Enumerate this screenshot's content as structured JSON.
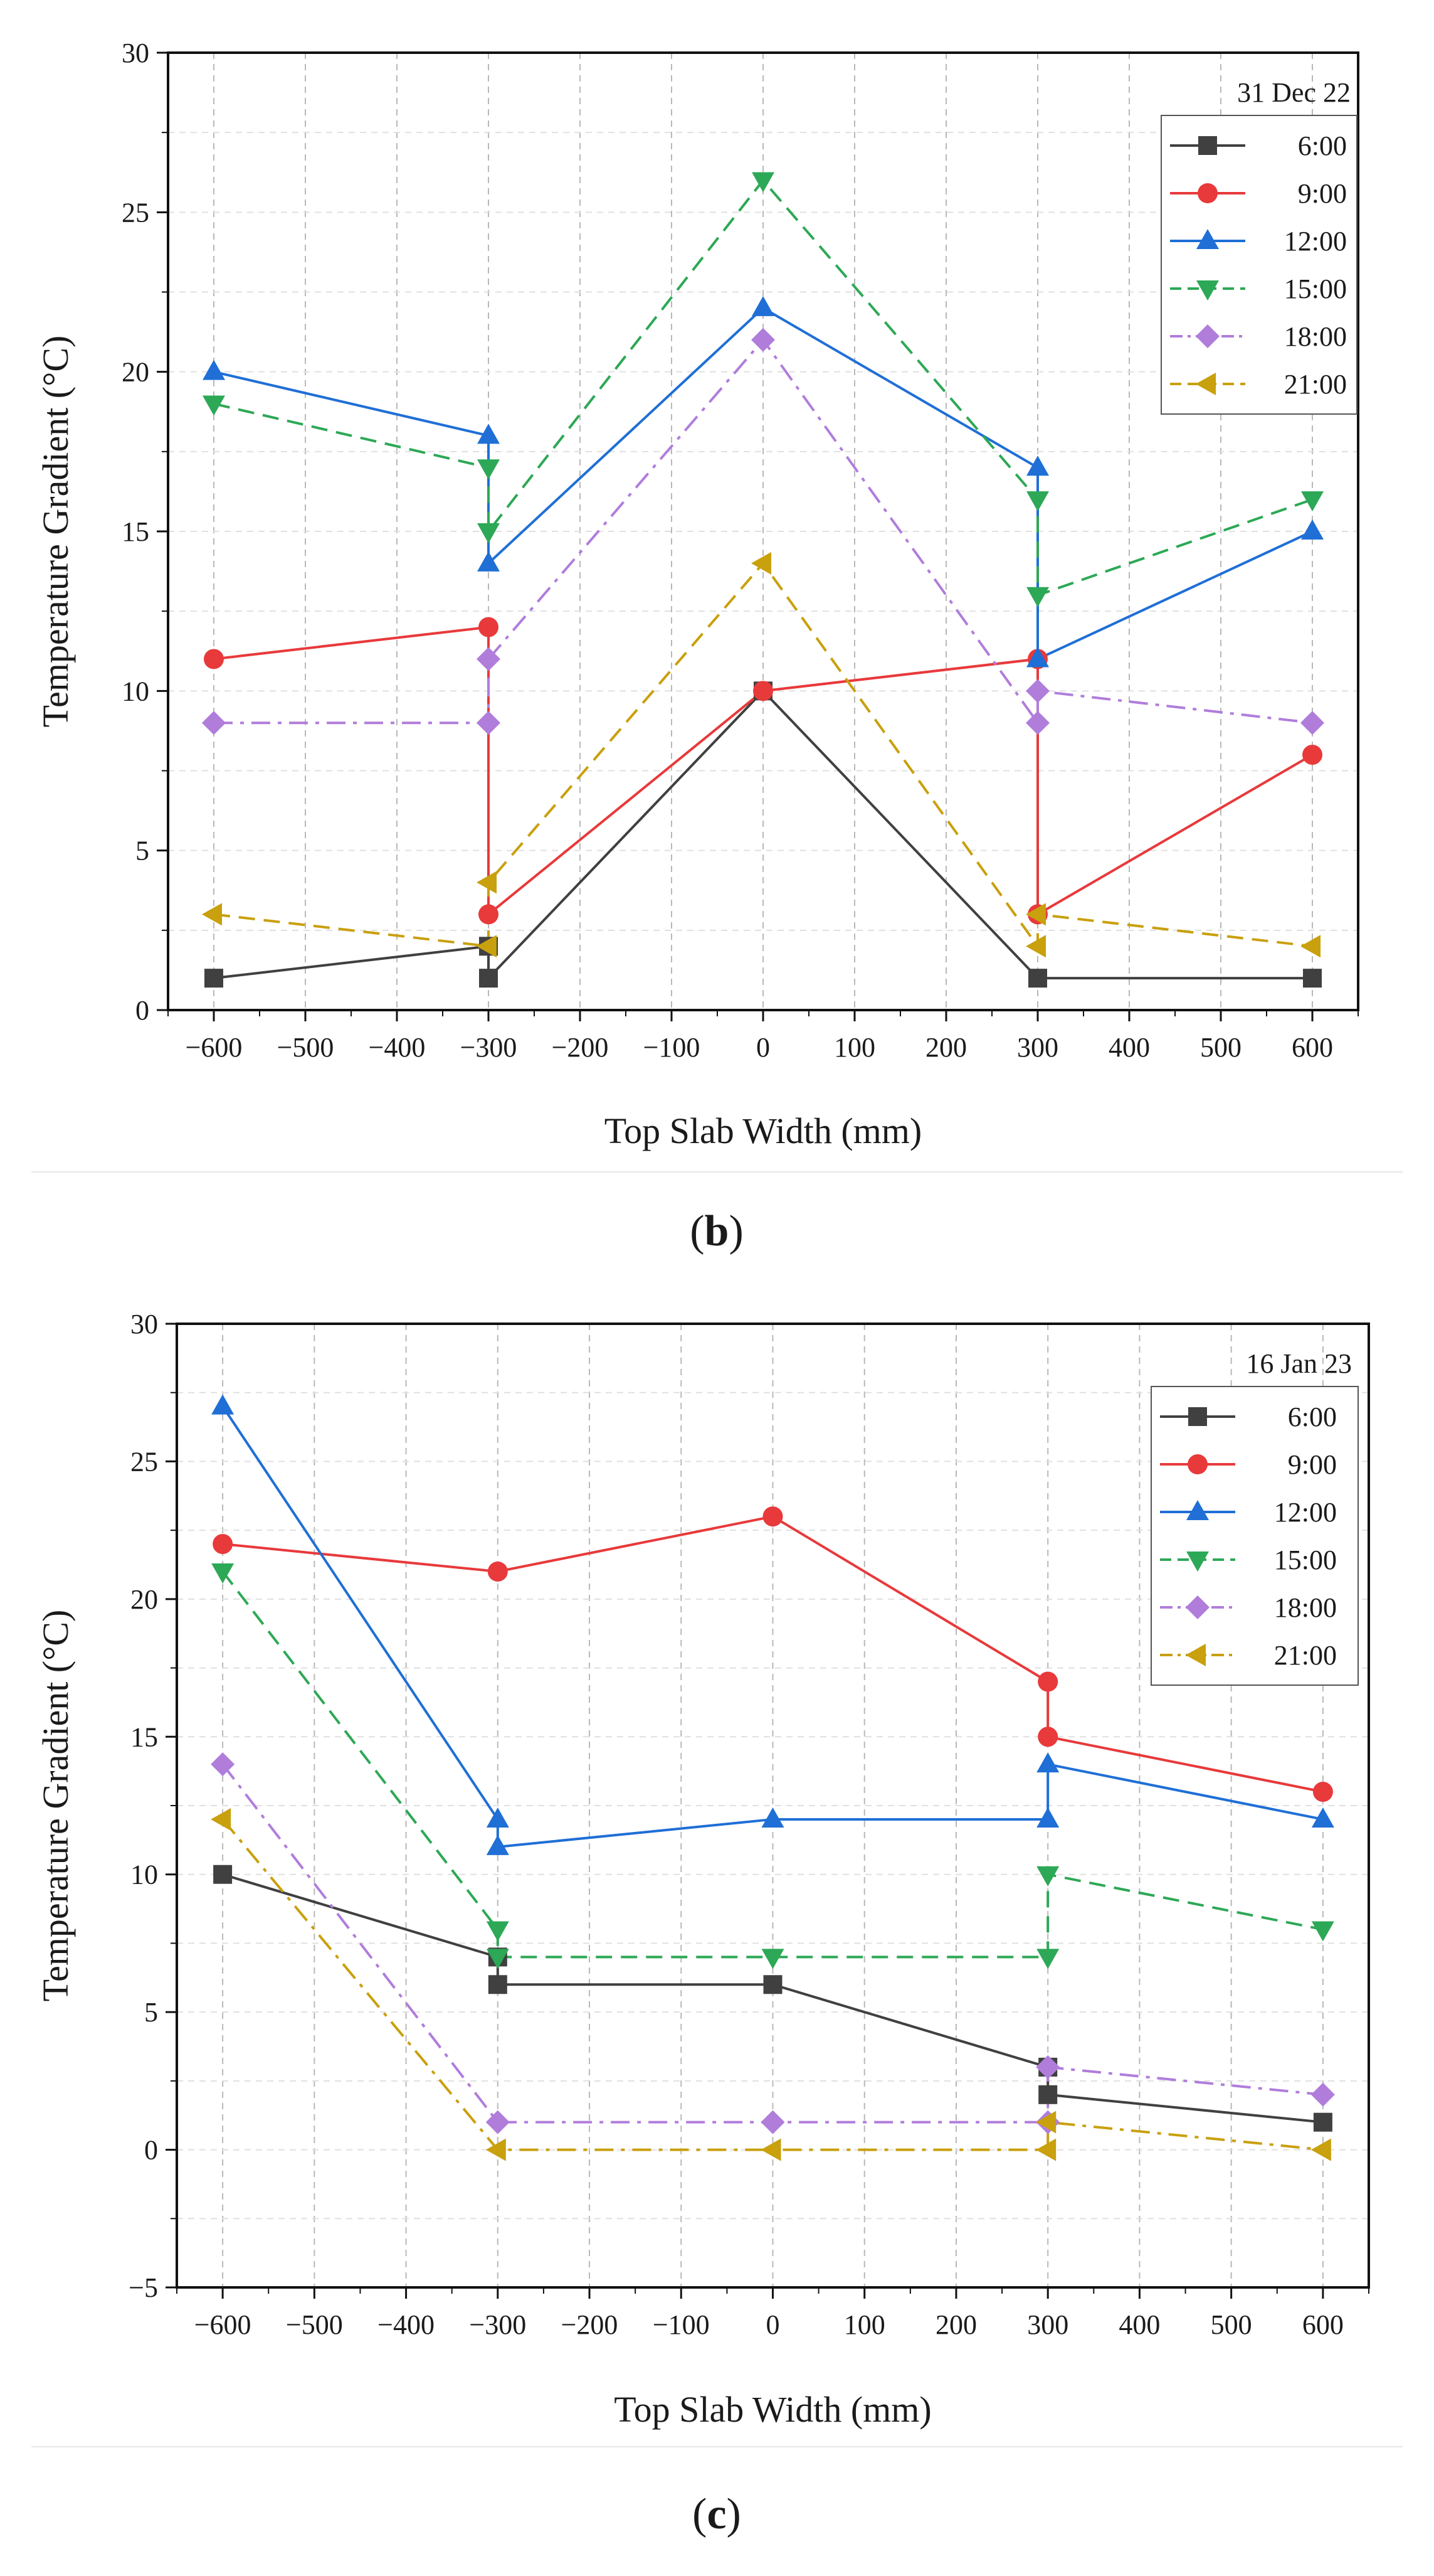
{
  "figure": {
    "panels": [
      {
        "label_open": "(",
        "label_letter": "b",
        "label_close": ")"
      },
      {
        "label_open": "(",
        "label_letter": "c",
        "label_close": ")"
      }
    ]
  },
  "chart_data": [
    {
      "type": "line",
      "panel": "b",
      "title": "31 Dec 22",
      "xlabel": "Top Slab Width (mm)",
      "ylabel": "Temperature Gradient (°C)",
      "xlim": [
        -650,
        650
      ],
      "ylim": [
        0,
        30
      ],
      "xticks": [
        -600,
        -500,
        -400,
        -300,
        -200,
        -100,
        0,
        100,
        200,
        300,
        400,
        500,
        600
      ],
      "xtick_labels": [
        "−600",
        "−500",
        "−400",
        "−300",
        "−200",
        "−100",
        "0",
        "100",
        "200",
        "300",
        "400",
        "500",
        "600"
      ],
      "yticks": [
        0,
        5,
        10,
        15,
        20,
        25,
        30
      ],
      "ytick_labels": [
        "0",
        "5",
        "10",
        "15",
        "20",
        "25",
        "30"
      ],
      "grid": true,
      "legend": "top-right",
      "series": [
        {
          "name": "6:00",
          "color": "#404040",
          "marker": "square",
          "dash": "solid",
          "x": [
            -600,
            -300,
            -300,
            0,
            300,
            600
          ],
          "y": [
            1,
            2,
            1,
            10,
            1,
            1
          ]
        },
        {
          "name": "9:00",
          "color": "#e8393b",
          "marker": "circle",
          "dash": "solid",
          "x": [
            -600,
            -300,
            -300,
            0,
            300,
            300,
            600
          ],
          "y": [
            11,
            12,
            3,
            10,
            11,
            3,
            8
          ]
        },
        {
          "name": "12:00",
          "color": "#1f6fd6",
          "marker": "triangle-up",
          "dash": "solid",
          "x": [
            -600,
            -300,
            -300,
            0,
            300,
            300,
            600
          ],
          "y": [
            20,
            18,
            14,
            22,
            17,
            11,
            15
          ]
        },
        {
          "name": "15:00",
          "color": "#2da856",
          "marker": "triangle-down",
          "dash": "dash",
          "x": [
            -600,
            -300,
            -300,
            0,
            300,
            300,
            600
          ],
          "y": [
            19,
            17,
            15,
            26,
            16,
            13,
            16
          ]
        },
        {
          "name": "18:00",
          "color": "#b07ddb",
          "marker": "diamond",
          "dash": "dashdot",
          "x": [
            -600,
            -300,
            -300,
            0,
            300,
            300,
            600
          ],
          "y": [
            9,
            9,
            11,
            21,
            9,
            10,
            9
          ]
        },
        {
          "name": "21:00",
          "color": "#c9a00d",
          "marker": "triangle-left",
          "dash": "dash",
          "x": [
            -600,
            -300,
            -300,
            0,
            300,
            300,
            600
          ],
          "y": [
            3,
            2,
            4,
            14,
            2,
            3,
            2
          ]
        }
      ]
    },
    {
      "type": "line",
      "panel": "c",
      "title": "16 Jan 23",
      "xlabel": "Top Slab Width (mm)",
      "ylabel": "Temperature Gradient (°C)",
      "xlim": [
        -650,
        650
      ],
      "ylim": [
        -5,
        30
      ],
      "xticks": [
        -600,
        -500,
        -400,
        -300,
        -200,
        -100,
        0,
        100,
        200,
        300,
        400,
        500,
        600
      ],
      "xtick_labels": [
        "−600",
        "−500",
        "−400",
        "−300",
        "−200",
        "−100",
        "0",
        "100",
        "200",
        "300",
        "400",
        "500",
        "600"
      ],
      "yticks": [
        -5,
        0,
        5,
        10,
        15,
        20,
        25,
        30
      ],
      "ytick_labels": [
        "−5",
        "0",
        "5",
        "10",
        "15",
        "20",
        "25",
        "30"
      ],
      "grid": true,
      "legend": "top-right",
      "series": [
        {
          "name": "6:00",
          "color": "#404040",
          "marker": "square",
          "dash": "solid",
          "x": [
            -600,
            -300,
            -300,
            0,
            300,
            300,
            600
          ],
          "y": [
            10,
            7,
            6,
            6,
            3,
            2,
            1
          ]
        },
        {
          "name": "9:00",
          "color": "#e8393b",
          "marker": "circle",
          "dash": "solid",
          "x": [
            -600,
            -300,
            0,
            300,
            300,
            600
          ],
          "y": [
            22,
            21,
            23,
            17,
            15,
            13
          ]
        },
        {
          "name": "12:00",
          "color": "#1f6fd6",
          "marker": "triangle-up",
          "dash": "solid",
          "x": [
            -600,
            -300,
            -300,
            0,
            300,
            300,
            600
          ],
          "y": [
            27,
            12,
            11,
            12,
            12,
            14,
            12
          ]
        },
        {
          "name": "15:00",
          "color": "#2da856",
          "marker": "triangle-down",
          "dash": "dash",
          "x": [
            -600,
            -300,
            -300,
            0,
            300,
            300,
            600
          ],
          "y": [
            21,
            8,
            7,
            7,
            7,
            10,
            8
          ]
        },
        {
          "name": "18:00",
          "color": "#b07ddb",
          "marker": "diamond",
          "dash": "dashdot",
          "x": [
            -600,
            -300,
            0,
            300,
            300,
            600
          ],
          "y": [
            14,
            1,
            1,
            1,
            3,
            2
          ]
        },
        {
          "name": "21:00",
          "color": "#c9a00d",
          "marker": "triangle-left",
          "dash": "dashdot",
          "x": [
            -600,
            -300,
            0,
            300,
            300,
            600
          ],
          "y": [
            12,
            0,
            0,
            0,
            1,
            0
          ]
        }
      ]
    }
  ]
}
